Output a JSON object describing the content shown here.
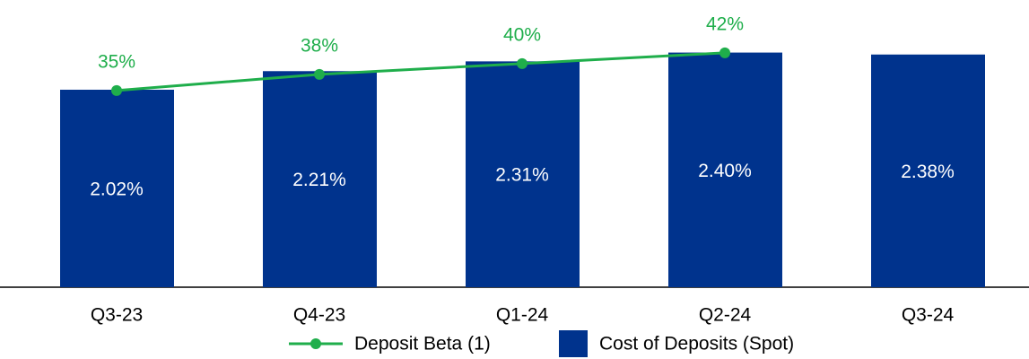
{
  "chart_data": {
    "type": "bar",
    "categories": [
      "Q3-23",
      "Q4-23",
      "Q1-24",
      "Q2-24",
      "Q3-24"
    ],
    "series": [
      {
        "name": "Deposit Beta (1)",
        "type": "line",
        "axis": "y2",
        "color": "#1fae4b",
        "values": [
          35,
          38,
          40,
          42,
          null
        ],
        "value_labels": [
          "35%",
          "38%",
          "40%",
          "42%",
          null
        ]
      },
      {
        "name": "Cost of Deposits (Spot)",
        "type": "bar",
        "color": "#00338d",
        "values": [
          2.02,
          2.21,
          2.31,
          2.4,
          2.38
        ],
        "value_labels": [
          "2.02%",
          "2.21%",
          "2.31%",
          "2.40%",
          "2.38%"
        ]
      }
    ],
    "ylim": [
      0,
      2.8
    ],
    "y2lim": [
      -1.5,
      49.3
    ]
  }
}
